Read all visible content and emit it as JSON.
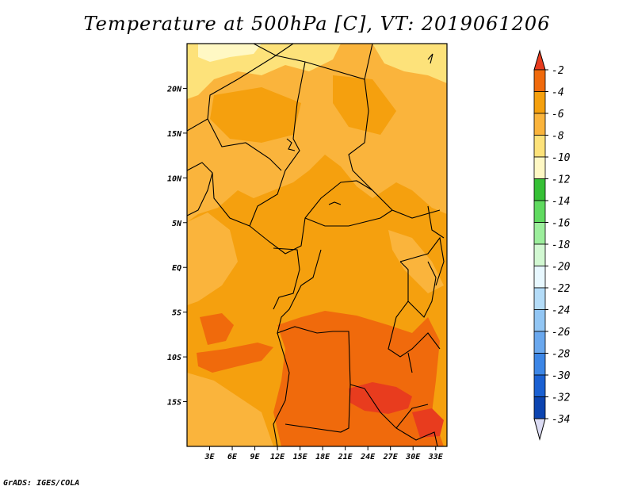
{
  "title": "Temperature at 500hPa [C], VT: 2019061206",
  "credit": "GrADS: IGES/COLA",
  "map": {
    "lat_ticks": [
      {
        "label": "20N",
        "lat": 20
      },
      {
        "label": "15N",
        "lat": 15
      },
      {
        "label": "10N",
        "lat": 10
      },
      {
        "label": "5N",
        "lat": 5
      },
      {
        "label": "EQ",
        "lat": 0
      },
      {
        "label": "5S",
        "lat": -5
      },
      {
        "label": "10S",
        "lat": -10
      },
      {
        "label": "15S",
        "lat": -15
      }
    ],
    "lon_ticks": [
      {
        "label": "3E",
        "lon": 3
      },
      {
        "label": "6E",
        "lon": 6
      },
      {
        "label": "9E",
        "lon": 9
      },
      {
        "label": "12E",
        "lon": 12
      },
      {
        "label": "15E",
        "lon": 15
      },
      {
        "label": "18E",
        "lon": 18
      },
      {
        "label": "21E",
        "lon": 21
      },
      {
        "label": "24E",
        "lon": 24
      },
      {
        "label": "27E",
        "lon": 27
      },
      {
        "label": "30E",
        "lon": 30
      },
      {
        "label": "33E",
        "lon": 33
      }
    ],
    "extent": {
      "lon_min": 0,
      "lon_max": 34.5,
      "lat_min": -20,
      "lat_max": 25
    }
  },
  "colorbar": {
    "levels": [
      {
        "label": "-2",
        "color": "#e83c1e"
      },
      {
        "label": "-4",
        "color": "#f06a0c"
      },
      {
        "label": "-6",
        "color": "#f5a00e"
      },
      {
        "label": "-8",
        "color": "#fab43c"
      },
      {
        "label": "-10",
        "color": "#fde27a"
      },
      {
        "label": "-12",
        "color": "#fff8c4"
      },
      {
        "label": "-14",
        "color": "#36c036"
      },
      {
        "label": "-16",
        "color": "#60da60"
      },
      {
        "label": "-18",
        "color": "#9cee9c"
      },
      {
        "label": "-20",
        "color": "#d2f8d2"
      },
      {
        "label": "-22",
        "color": "#e8f8ff"
      },
      {
        "label": "-24",
        "color": "#b4dcf8"
      },
      {
        "label": "-26",
        "color": "#92c6f4"
      },
      {
        "label": "-28",
        "color": "#6aa8ee"
      },
      {
        "label": "-30",
        "color": "#3c86e6"
      },
      {
        "label": "-32",
        "color": "#1a60d2"
      },
      {
        "label": "-34",
        "color": "#0c44b0"
      }
    ],
    "above_color": "#e83c1e",
    "below_color": "#0a1a78",
    "bottom_color": "#dcdcf4"
  }
}
